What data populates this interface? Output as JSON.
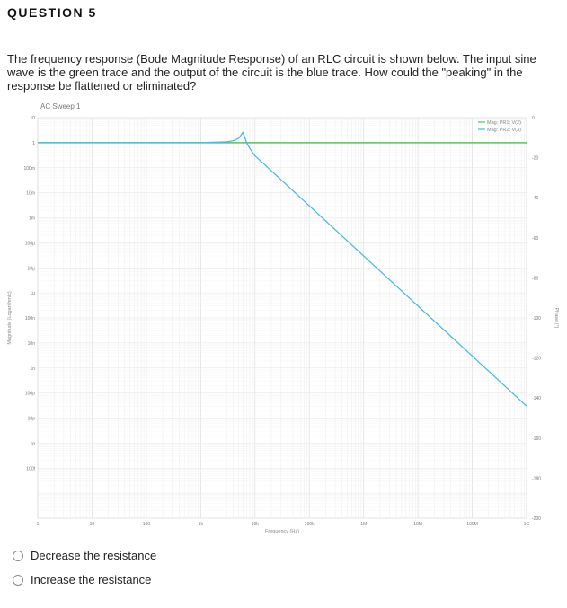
{
  "question": {
    "title": "QUESTION 5",
    "text": "The frequency response (Bode Magnitude Response) of an RLC circuit is shown below. The input sine wave is the green trace and the output of the circuit is the blue trace. How could the \"peaking\" in the response be flattened or eliminated?"
  },
  "options": [
    {
      "label": "Decrease the resistance"
    },
    {
      "label": "Increase the resistance"
    }
  ],
  "colors": {
    "input": "#56c45a",
    "output": "#4bb8e0"
  },
  "chart_data": {
    "type": "line",
    "title": "AC Sweep 1",
    "xlabel": "Frequency (Hz)",
    "ylabel": "Magnitude (Logarithmic)",
    "y2label": "Phase (°)",
    "xscale": "log",
    "yscale": "log",
    "xlim": [
      1,
      1000000000
    ],
    "ylim": [
      1e-15,
      10
    ],
    "y2lim": [
      -200,
      0
    ],
    "x_ticks": [
      "1",
      "10",
      "100",
      "1k",
      "10k",
      "100k",
      "1M",
      "10M",
      "100M",
      "1G"
    ],
    "y_ticks": [
      "10",
      "1",
      "100m",
      "10m",
      "1m",
      "100μ",
      "10μ",
      "1μ",
      "100n",
      "10n",
      "1n",
      "100p",
      "10p",
      "1p",
      "100f"
    ],
    "y2_ticks": [
      "0",
      "-20",
      "-40",
      "-60",
      "-80",
      "-100",
      "-120",
      "-140",
      "-160",
      "-180",
      "-200"
    ],
    "legend": [
      "Mag: PR1: V(2)",
      "Mag: PR2: V(3)"
    ],
    "series": [
      {
        "name": "Mag: PR1: V(2)",
        "x": [
          1,
          1000000000
        ],
        "y": [
          1,
          1
        ]
      },
      {
        "name": "Mag: PR2: V(3)",
        "x": [
          1,
          1000,
          3000,
          4000,
          5000,
          5500,
          6000,
          6500,
          7000,
          8000,
          10000,
          100000,
          1000000,
          10000000,
          100000000,
          1000000000
        ],
        "y": [
          1,
          1,
          1.08,
          1.2,
          1.5,
          2.0,
          2.6,
          1.6,
          1.0,
          0.6,
          0.3,
          0.003,
          3e-05,
          3e-07,
          3e-09,
          3e-11
        ]
      }
    ]
  }
}
